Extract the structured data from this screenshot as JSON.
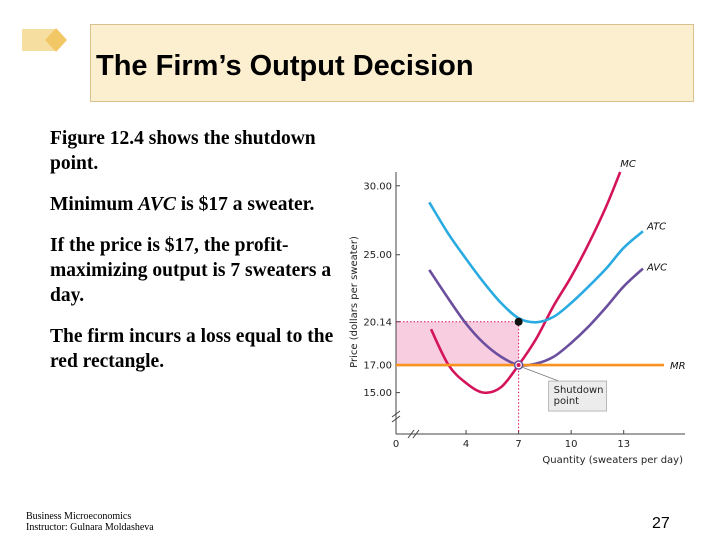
{
  "slide": {
    "title": "The Firm’s Output Decision",
    "paragraphs": [
      {
        "parts": [
          "Figure 12.4 shows the shutdown point."
        ]
      },
      {
        "parts": [
          "Minimum ",
          "AVC",
          " is $17 a sweater."
        ]
      },
      {
        "parts": [
          "If the price is $17, the profit-maximizing output is 7 sweaters a day."
        ]
      },
      {
        "parts": [
          "The firm incurs a loss equal to the red rectangle."
        ]
      }
    ],
    "footer": {
      "line1": "Business Microeconomics",
      "line2": "Instructor: Gulnara Moldasheva"
    },
    "page_number": "27"
  },
  "chart_data": {
    "type": "line",
    "xlabel": "Quantity (sweaters per day)",
    "ylabel": "Price (dollars per sweater)",
    "x_ticks": [
      "0",
      "4",
      "7",
      "10",
      "13"
    ],
    "x_tick_values": [
      0,
      4,
      7,
      10,
      13
    ],
    "y_ticks": [
      "15.00",
      "17.00",
      "20.14",
      "25.00",
      "30.00"
    ],
    "y_tick_values": [
      15,
      17,
      20.14,
      25,
      30
    ],
    "highlight_tick_color": "#d4145a",
    "xlim": [
      0,
      16.5
    ],
    "ylim": [
      12,
      31
    ],
    "series": [
      {
        "name": "MC",
        "color": "#d4145a",
        "x": [
          2,
          3,
          4,
          5,
          6,
          7,
          8,
          9,
          10,
          11,
          12,
          12.8
        ],
        "y": [
          19.6,
          17.0,
          15.7,
          15.0,
          15.4,
          17.0,
          18.9,
          21.3,
          23.4,
          25.8,
          28.5,
          31.0
        ]
      },
      {
        "name": "ATC",
        "color": "#29abe2",
        "x": [
          1.9,
          3,
          4,
          5,
          6,
          7,
          8,
          9,
          10,
          11,
          12,
          13,
          14.1
        ],
        "y": [
          28.8,
          26.5,
          24.7,
          23.0,
          21.5,
          20.4,
          20.1,
          20.5,
          21.5,
          22.7,
          24.0,
          25.5,
          26.7
        ]
      },
      {
        "name": "AVC",
        "color": "#6b4f9e",
        "x": [
          1.9,
          3,
          4,
          5,
          6,
          7,
          8,
          9,
          10,
          11,
          12,
          13,
          14.1
        ],
        "y": [
          23.9,
          21.8,
          20.0,
          18.6,
          17.6,
          17.0,
          17.1,
          17.6,
          18.6,
          19.8,
          21.2,
          22.7,
          24.0
        ]
      },
      {
        "name": "MR",
        "color": "#f7931e",
        "x": [
          0,
          15.3
        ],
        "y": [
          17.0,
          17.0
        ]
      }
    ],
    "loss_rectangle": {
      "x0": 0,
      "x1": 7,
      "y0": 17.0,
      "y1": 20.14,
      "color": "#f9cde0"
    },
    "annotations": [
      {
        "text_lines": [
          "Shutdown",
          "point"
        ],
        "x": 7,
        "y": 17.0
      },
      {
        "marker": "dot",
        "x": 7,
        "y": 20.14
      }
    ]
  }
}
